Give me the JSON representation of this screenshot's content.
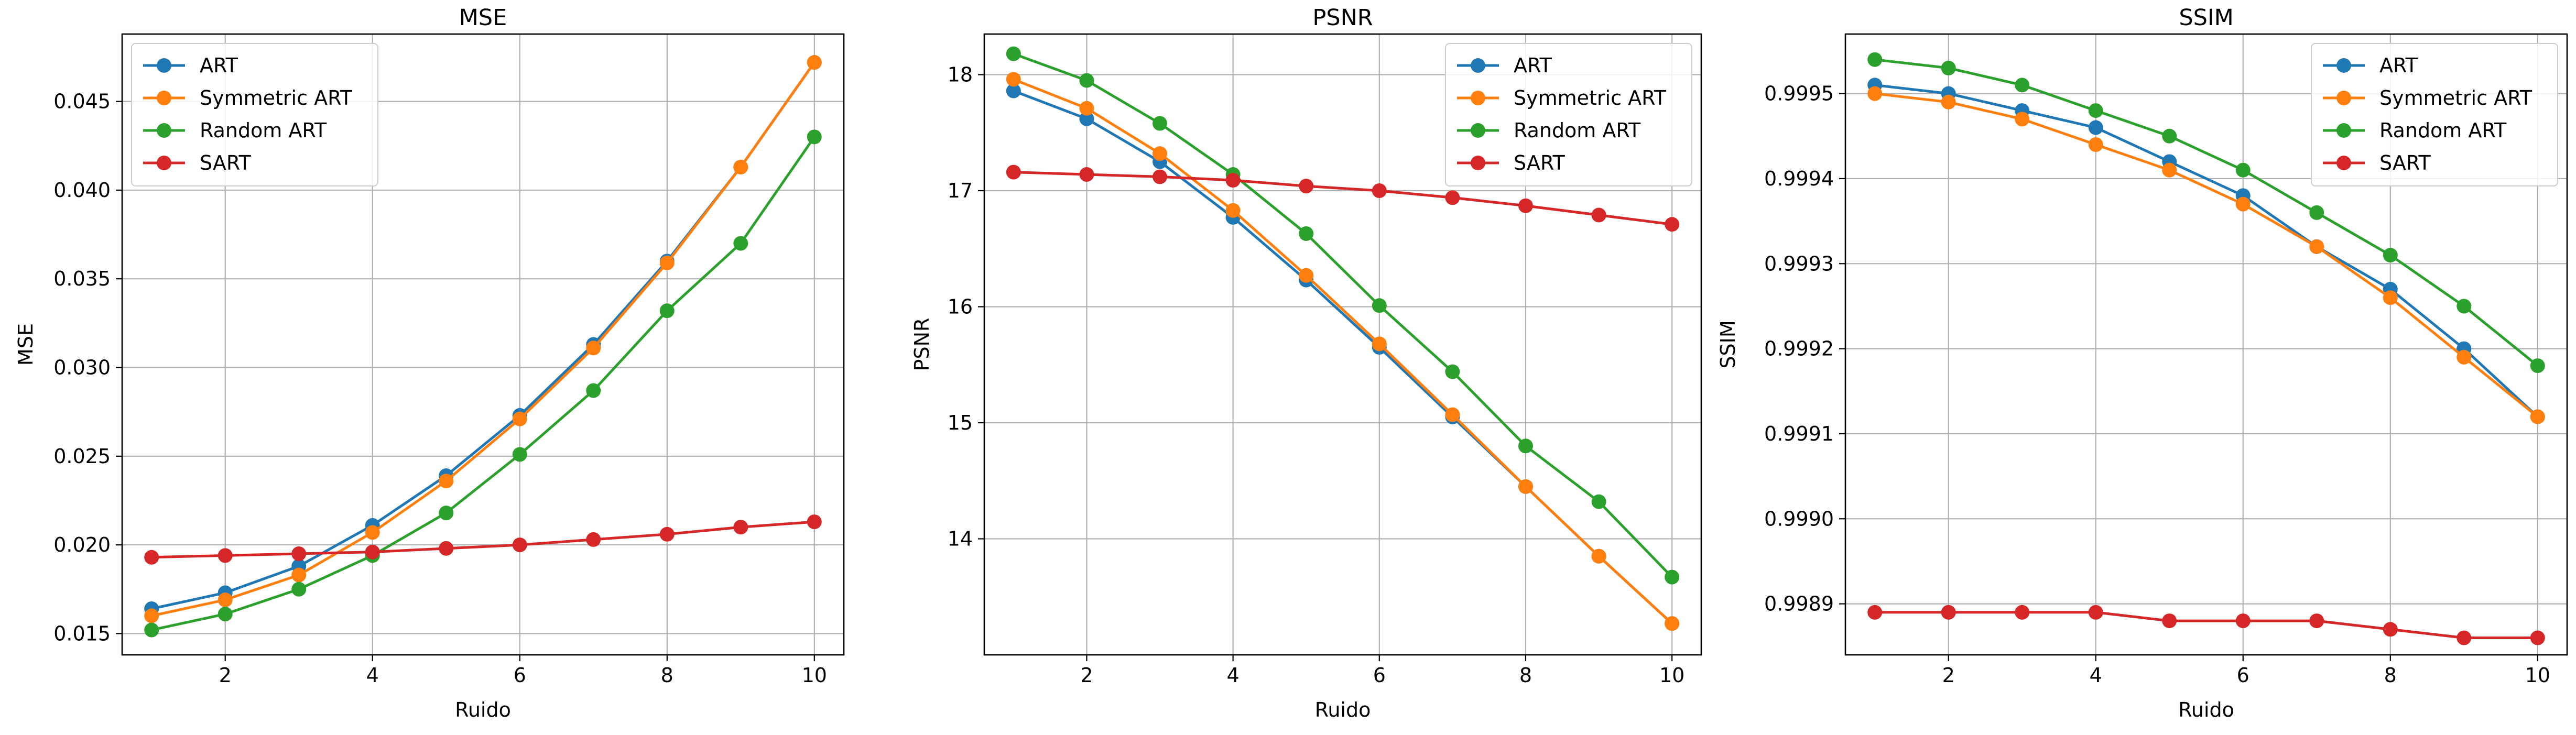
{
  "chart_data": [
    {
      "type": "line",
      "title": "MSE",
      "xlabel": "Ruido",
      "ylabel": "MSE",
      "x": [
        1,
        2,
        3,
        4,
        5,
        6,
        7,
        8,
        9,
        10
      ],
      "xlim": [
        0.6,
        10.4
      ],
      "ylim": [
        0.0138,
        0.0488
      ],
      "xticks": [
        2,
        4,
        6,
        8,
        10
      ],
      "yticks": [
        0.015,
        0.02,
        0.025,
        0.03,
        0.035,
        0.04,
        0.045
      ],
      "yticklabels": [
        "0.015",
        "0.020",
        "0.025",
        "0.030",
        "0.035",
        "0.040",
        "0.045"
      ],
      "grid": true,
      "legend_position": "top-left",
      "series": [
        {
          "name": "ART",
          "color": "#1f77b4",
          "values": [
            0.0164,
            0.0173,
            0.0188,
            0.0211,
            0.0239,
            0.0273,
            0.0313,
            0.036,
            0.0413,
            0.0472
          ]
        },
        {
          "name": "Symmetric ART",
          "color": "#ff7f0e",
          "values": [
            0.016,
            0.0169,
            0.0183,
            0.0207,
            0.0236,
            0.0271,
            0.0311,
            0.0359,
            0.0413,
            0.0472
          ]
        },
        {
          "name": "Random ART",
          "color": "#2ca02c",
          "values": [
            0.0152,
            0.0161,
            0.0175,
            0.0194,
            0.0218,
            0.0251,
            0.0287,
            0.0332,
            0.037,
            0.043
          ]
        },
        {
          "name": "SART",
          "color": "#d62728",
          "values": [
            0.0193,
            0.0194,
            0.0195,
            0.0196,
            0.0198,
            0.02,
            0.0203,
            0.0206,
            0.021,
            0.0213
          ]
        }
      ]
    },
    {
      "type": "line",
      "title": "PSNR",
      "xlabel": "Ruido",
      "ylabel": "PSNR",
      "x": [
        1,
        2,
        3,
        4,
        5,
        6,
        7,
        8,
        9,
        10
      ],
      "xlim": [
        0.6,
        10.4
      ],
      "ylim": [
        13.0,
        18.35
      ],
      "xticks": [
        2,
        4,
        6,
        8,
        10
      ],
      "yticks": [
        14,
        15,
        16,
        17,
        18
      ],
      "yticklabels": [
        "14",
        "15",
        "16",
        "17",
        "18"
      ],
      "grid": true,
      "legend_position": "top-right",
      "series": [
        {
          "name": "ART",
          "color": "#1f77b4",
          "values": [
            17.86,
            17.62,
            17.25,
            16.77,
            16.23,
            15.65,
            15.05,
            14.45,
            13.85,
            13.27
          ]
        },
        {
          "name": "Symmetric ART",
          "color": "#ff7f0e",
          "values": [
            17.96,
            17.71,
            17.32,
            16.83,
            16.27,
            15.68,
            15.07,
            14.45,
            13.85,
            13.27
          ]
        },
        {
          "name": "Random ART",
          "color": "#2ca02c",
          "values": [
            18.18,
            17.95,
            17.58,
            17.14,
            16.63,
            16.01,
            15.44,
            14.8,
            14.32,
            13.67
          ]
        },
        {
          "name": "SART",
          "color": "#d62728",
          "values": [
            17.16,
            17.14,
            17.12,
            17.09,
            17.04,
            17.0,
            16.94,
            16.87,
            16.79,
            16.71
          ]
        }
      ]
    },
    {
      "type": "line",
      "title": "SSIM",
      "xlabel": "Ruido",
      "ylabel": "SSIM",
      "x": [
        1,
        2,
        3,
        4,
        5,
        6,
        7,
        8,
        9,
        10
      ],
      "xlim": [
        0.6,
        10.4
      ],
      "ylim": [
        0.99884,
        0.99957
      ],
      "xticks": [
        2,
        4,
        6,
        8,
        10
      ],
      "yticks": [
        0.9989,
        0.999,
        0.9991,
        0.9992,
        0.9993,
        0.9994,
        0.9995
      ],
      "yticklabels": [
        "0.9989",
        "0.9990",
        "0.9991",
        "0.9992",
        "0.9993",
        "0.9994",
        "0.9995"
      ],
      "grid": true,
      "legend_position": "top-right",
      "series": [
        {
          "name": "ART",
          "color": "#1f77b4",
          "values": [
            0.99951,
            0.9995,
            0.99948,
            0.99946,
            0.99942,
            0.99938,
            0.99932,
            0.99927,
            0.9992,
            0.99912
          ]
        },
        {
          "name": "Symmetric ART",
          "color": "#ff7f0e",
          "values": [
            0.9995,
            0.99949,
            0.99947,
            0.99944,
            0.99941,
            0.99937,
            0.99932,
            0.99926,
            0.99919,
            0.99912
          ]
        },
        {
          "name": "Random ART",
          "color": "#2ca02c",
          "values": [
            0.99954,
            0.99953,
            0.99951,
            0.99948,
            0.99945,
            0.99941,
            0.99936,
            0.99931,
            0.99925,
            0.99918
          ]
        },
        {
          "name": "SART",
          "color": "#d62728",
          "values": [
            0.99889,
            0.99889,
            0.99889,
            0.99889,
            0.99888,
            0.99888,
            0.99888,
            0.99887,
            0.99886,
            0.99886
          ]
        }
      ]
    }
  ]
}
